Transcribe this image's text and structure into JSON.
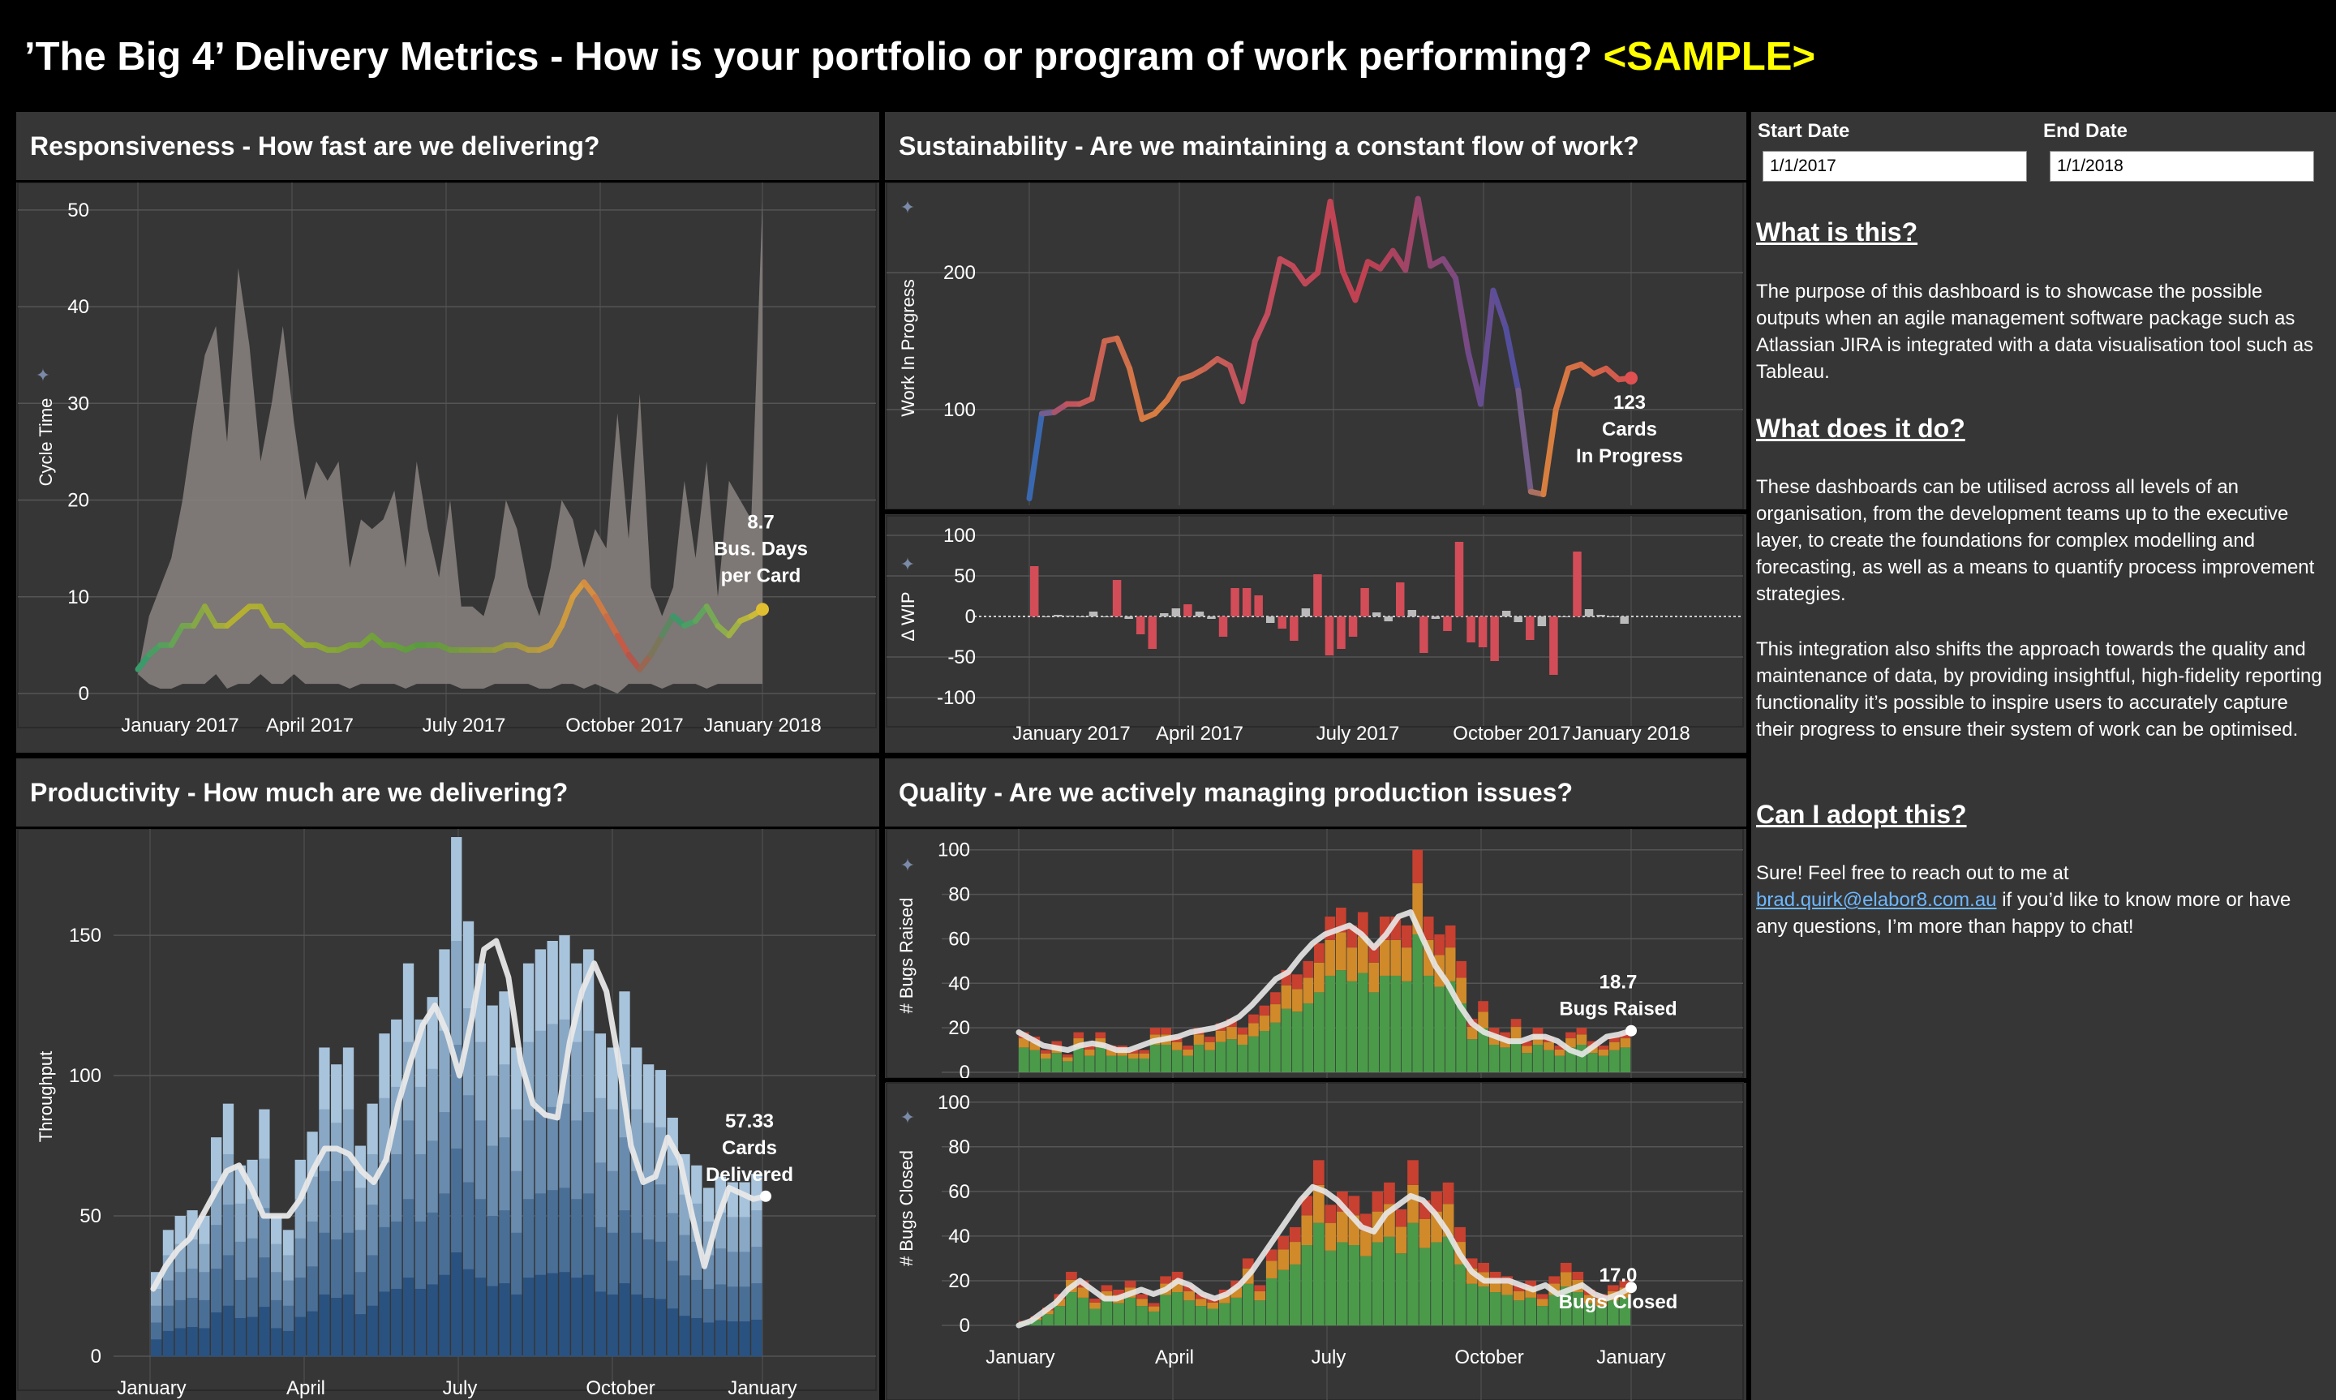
{
  "header": {
    "title": "’The Big 4’ Delivery Metrics - How is your portfolio or program of work performing?",
    "sample": "<SAMPLE>"
  },
  "colors": {
    "background": "#000000",
    "panel": "#363636",
    "accent_yellow": "#ffff00",
    "link": "#6db7ff",
    "band": "#8a8380",
    "bar_blue": "#5b87ad",
    "bug_green": "#4a9a4a",
    "bug_orange": "#d08a2a",
    "bug_red": "#c84030",
    "delta_red": "#d24d57",
    "delta_grey": "#bbbbbb"
  },
  "filters": {
    "start_label": "Start Date",
    "start_value": "1/1/2017",
    "end_label": "End Date",
    "end_value": "1/1/2018"
  },
  "info": {
    "h1": "What is this?",
    "p1": "The purpose of this dashboard is to showcase the possible outputs when an agile management software package such as Atlassian JIRA is integrated with a data visualisation tool such as Tableau.",
    "h2": "What does it do?",
    "p2": "These dashboards can be utilised across all levels of an organisation, from the development teams up to the executive layer, to create the foundations for complex modelling and forecasting, as well as a means to quantify process improvement strategies.",
    "p3": "This integration also shifts the approach towards the quality and maintenance of data, by providing insightful, high-fidelity reporting functionality it’s possible to inspire users to accurately capture their progress to ensure their system of work can be optimised.",
    "h3": "Can I adopt this?",
    "p4a": "Sure! Feel free to reach out to me at",
    "email": "brad.quirk@elabor8.com.au",
    "p4b": " if you’d like to know more or have any questions, I’m more than happy to chat!"
  },
  "panels": {
    "responsiveness": "Responsiveness - How fast are we delivering?",
    "sustainability": "Sustainability - Are we maintaining a constant flow of work?",
    "productivity": "Productivity - How much are we delivering?",
    "quality": "Quality - Are we actively managing production issues?"
  },
  "chart_data": [
    {
      "id": "responsiveness",
      "type": "area",
      "ylabel": "Cycle Time",
      "ylim": [
        0,
        52
      ],
      "yticks": [
        0,
        10,
        20,
        30,
        40,
        50
      ],
      "xticks": [
        "January 2017",
        "April 2017",
        "July 2017",
        "October 2017",
        "January 2018"
      ],
      "annotation": [
        "8.7",
        "Bus. Days",
        "per Card"
      ],
      "series": [
        {
          "name": "cycle_time_upper",
          "values": [
            2,
            8,
            11,
            14,
            20,
            28,
            35,
            38,
            26,
            44,
            36,
            24,
            30,
            38,
            28,
            20,
            24,
            22,
            24,
            13,
            18,
            17,
            18,
            21,
            13,
            24,
            17,
            12,
            20,
            9,
            9,
            8,
            12,
            20,
            17,
            11,
            8,
            13,
            20,
            18,
            13,
            17,
            15,
            29,
            16,
            31,
            11,
            8,
            11,
            22,
            14,
            24,
            10,
            22,
            20,
            18,
            51
          ]
        },
        {
          "name": "cycle_time_lower",
          "values": [
            2,
            1,
            0.5,
            0.5,
            1,
            1,
            1,
            2,
            0.5,
            1,
            1,
            2,
            1,
            1,
            2,
            1,
            1,
            1,
            1,
            0.5,
            1,
            1,
            1,
            1,
            0.5,
            1,
            1,
            1,
            1,
            0.5,
            0.5,
            0.5,
            1,
            1,
            1,
            1,
            0.5,
            0.5,
            1,
            1,
            0.5,
            1,
            0.5,
            0,
            1,
            1,
            1,
            0.5,
            1,
            1,
            1,
            0.5,
            1,
            1,
            1,
            1,
            1
          ]
        },
        {
          "name": "cycle_time_avg",
          "values": [
            2.5,
            4,
            5,
            5,
            7,
            7,
            9,
            7,
            7,
            8,
            9,
            9,
            7,
            7,
            6,
            5,
            5,
            4.5,
            4.5,
            5,
            5,
            6,
            5,
            5,
            4.5,
            5,
            5,
            5,
            4.5,
            4.5,
            4.5,
            4.5,
            4.5,
            5,
            5,
            4.5,
            4.5,
            5,
            7,
            10,
            11.5,
            10,
            8,
            6,
            4,
            2.5,
            4,
            6,
            8,
            7,
            7.5,
            9,
            7,
            6,
            7.5,
            8,
            8.7
          ]
        }
      ]
    },
    {
      "id": "sustainability_wip",
      "type": "line",
      "ylabel": "Work In Progress",
      "ylim": [
        30,
        260
      ],
      "yticks": [
        100,
        200
      ],
      "annotation": [
        "123",
        "Cards",
        "In Progress"
      ],
      "series": [
        {
          "name": "wip",
          "values": [
            35,
            97,
            98,
            104,
            104,
            108,
            150,
            152,
            130,
            93,
            97,
            107,
            122,
            125,
            130,
            137,
            132,
            106,
            150,
            170,
            210,
            205,
            192,
            200,
            252,
            201,
            180,
            208,
            203,
            216,
            202,
            254,
            205,
            210,
            196,
            142,
            104,
            187,
            160,
            114,
            40,
            38,
            100,
            130,
            133,
            126,
            130,
            122,
            123
          ]
        }
      ]
    },
    {
      "id": "sustainability_delta",
      "type": "bar",
      "ylabel": "Δ WIP",
      "ylim": [
        -105,
        105
      ],
      "yticks": [
        100,
        50,
        0,
        -50,
        -100
      ],
      "xticks": [
        "January 2017",
        "April 2017",
        "July 2017",
        "October 2017",
        "January 2018"
      ],
      "series": [
        {
          "name": "delta_wip",
          "values": [
            62,
            0,
            2,
            1,
            0,
            6,
            0,
            45,
            -3,
            -22,
            -40,
            4,
            10,
            15,
            6,
            -3,
            -25,
            35,
            35,
            26,
            -8,
            -15,
            -30,
            10,
            52,
            -48,
            -40,
            -25,
            35,
            5,
            -6,
            42,
            8,
            -45,
            -3,
            -18,
            92,
            -32,
            -38,
            -55,
            7,
            -7,
            -29,
            -12,
            -72,
            0,
            80,
            9,
            2,
            0,
            -9
          ]
        }
      ]
    },
    {
      "id": "productivity",
      "type": "bar",
      "ylabel": "Throughput",
      "ylim": [
        0,
        185
      ],
      "yticks": [
        0,
        50,
        100,
        150
      ],
      "xticks": [
        "January",
        "April",
        "July",
        "October",
        "January"
      ],
      "annotation": [
        "57.33",
        "Cards",
        "Delivered"
      ],
      "series": [
        {
          "name": "throughput",
          "values": [
            30,
            45,
            50,
            52,
            50,
            78,
            90,
            68,
            70,
            88,
            50,
            45,
            70,
            80,
            110,
            104,
            110,
            75,
            90,
            115,
            120,
            140,
            120,
            128,
            145,
            185,
            155,
            140,
            125,
            130,
            110,
            140,
            145,
            148,
            150,
            140,
            145,
            115,
            110,
            130,
            110,
            104,
            102,
            85,
            72,
            68,
            60,
            64,
            62,
            62,
            65
          ]
        },
        {
          "name": "throughput_avg",
          "values": [
            24,
            32,
            38,
            42,
            50,
            58,
            66,
            68,
            60,
            50,
            50,
            50,
            56,
            66,
            74,
            74,
            72,
            66,
            62,
            70,
            90,
            105,
            118,
            125,
            115,
            100,
            120,
            145,
            148,
            135,
            105,
            90,
            86,
            85,
            112,
            130,
            140,
            130,
            105,
            75,
            62,
            64,
            78,
            70,
            50,
            32,
            48,
            60,
            58,
            56,
            57
          ]
        }
      ]
    },
    {
      "id": "bugs_raised",
      "type": "bar",
      "ylabel": "# Bugs Raised",
      "ylim": [
        0,
        105
      ],
      "yticks": [
        0,
        20,
        40,
        60,
        80,
        100
      ],
      "annotation": [
        "18.7",
        "Bugs Raised"
      ],
      "series": [
        {
          "name": "raised_total",
          "values": [
            18,
            16,
            10,
            14,
            8,
            18,
            12,
            18,
            12,
            12,
            10,
            10,
            20,
            20,
            16,
            12,
            20,
            16,
            22,
            24,
            20,
            26,
            30,
            36,
            46,
            44,
            50,
            58,
            70,
            74,
            66,
            72,
            58,
            70,
            70,
            66,
            100,
            70,
            62,
            66,
            50,
            24,
            32,
            20,
            18,
            24,
            14,
            20,
            16,
            12,
            18,
            20,
            14,
            12,
            16,
            18
          ]
        },
        {
          "name": "raised_avg",
          "values": [
            18,
            15,
            12,
            11,
            10,
            12,
            13,
            12,
            10,
            10,
            12,
            14,
            15,
            16,
            18,
            19,
            20,
            22,
            25,
            30,
            36,
            42,
            45,
            52,
            58,
            62,
            64,
            66,
            62,
            56,
            62,
            70,
            72,
            60,
            48,
            40,
            30,
            22,
            18,
            16,
            14,
            14,
            16,
            16,
            14,
            10,
            8,
            12,
            16,
            17,
            18.7
          ]
        }
      ]
    },
    {
      "id": "bugs_closed",
      "type": "bar",
      "ylabel": "# Bugs Closed",
      "ylim": [
        0,
        105
      ],
      "yticks": [
        0,
        20,
        40,
        60,
        80,
        100
      ],
      "xticks": [
        "January",
        "April",
        "July",
        "October",
        "January"
      ],
      "annotation": [
        "17.0",
        "Bugs Closed"
      ],
      "series": [
        {
          "name": "closed_total",
          "values": [
            2,
            4,
            8,
            14,
            24,
            20,
            12,
            18,
            16,
            20,
            14,
            10,
            22,
            24,
            18,
            14,
            12,
            16,
            20,
            30,
            18,
            34,
            40,
            44,
            58,
            74,
            54,
            60,
            58,
            50,
            60,
            64,
            52,
            74,
            56,
            60,
            64,
            44,
            30,
            28,
            24,
            22,
            18,
            20,
            14,
            22,
            28,
            24,
            16,
            14,
            18,
            20
          ]
        },
        {
          "name": "closed_avg",
          "values": [
            0,
            2,
            6,
            10,
            16,
            20,
            16,
            12,
            12,
            14,
            16,
            14,
            16,
            20,
            18,
            14,
            12,
            14,
            18,
            24,
            32,
            40,
            48,
            56,
            62,
            60,
            56,
            50,
            44,
            42,
            50,
            54,
            58,
            56,
            50,
            42,
            32,
            24,
            20,
            20,
            20,
            18,
            16,
            18,
            14,
            16,
            18,
            14,
            12,
            14,
            17
          ]
        }
      ]
    }
  ]
}
